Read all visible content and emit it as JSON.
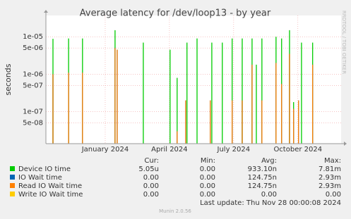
{
  "chart_data": {
    "type": "spike",
    "title": "Average latency for /dev/loop13 - by year",
    "y_label": "seconds",
    "side_text": "RRDTOOL / TOBI OETIKER",
    "log_y": true,
    "grid": true,
    "ylim": [
      1.4e-08,
      3.7e-05
    ],
    "yticks": [
      {
        "value": 1e-05,
        "label": "1e-05"
      },
      {
        "value": 5e-06,
        "label": "5e-06"
      },
      {
        "value": 1e-06,
        "label": "1e-06"
      },
      {
        "value": 5e-07,
        "label": "5e-07"
      },
      {
        "value": 1e-07,
        "label": "1e-07"
      },
      {
        "value": 5e-08,
        "label": "5e-08"
      }
    ],
    "xlim": [
      -2.77,
      11.02
    ],
    "xticks": [
      {
        "value": 0,
        "label": "January 2024"
      },
      {
        "value": 3,
        "label": "April 2024"
      },
      {
        "value": 6,
        "label": "July 2024"
      },
      {
        "value": 9,
        "label": "October 2024"
      }
    ],
    "legend_headers": [
      "Cur:",
      "Min:",
      "Avg:",
      "Max:"
    ],
    "series": [
      {
        "name": "Device IO time",
        "color": "#00cc00",
        "x": [
          -2.44,
          -1.71,
          -1.06,
          0.46,
          1.78,
          3.03,
          3.36,
          3.82,
          4.29,
          4.98,
          5.47,
          5.93,
          6.4,
          6.86,
          7.06,
          7.32,
          7.98,
          8.24,
          8.61,
          8.8,
          9.17,
          9.69
        ],
        "values": [
          8.8e-06,
          9e-06,
          9e-06,
          1.5e-05,
          7e-06,
          4.5e-06,
          8e-07,
          7e-06,
          9e-06,
          7e-06,
          7e-06,
          9e-06,
          9e-06,
          9e-06,
          1.8e-06,
          9e-06,
          1e-05,
          9e-06,
          1.5e-05,
          1.8e-07,
          7e-06,
          7e-06
        ],
        "stats": [
          "5.05u",
          "0.00",
          "933.10n",
          "7.81m"
        ]
      },
      {
        "name": "IO Wait time",
        "color": "#0066b3",
        "x": [
          -2.44,
          -1.71,
          -1.06,
          0.46,
          0.56,
          3.36,
          3.76,
          4.91,
          5.93,
          6.4,
          6.86,
          7.32,
          7.98,
          8.24,
          8.61,
          8.8,
          9.03,
          9.69
        ],
        "values": [
          1e-06,
          1.1e-06,
          1.1e-06,
          5e-06,
          4.5e-06,
          3e-08,
          2e-07,
          2e-07,
          2e-07,
          2e-07,
          1.8e-06,
          2e-07,
          2e-06,
          5.5e-07,
          3.5e-06,
          1.2e-07,
          2e-07,
          1.8e-06
        ],
        "stats": [
          "0.00",
          "0.00",
          "124.75n",
          "2.93m"
        ]
      },
      {
        "name": "Read IO Wait time",
        "color": "#ff8000",
        "x": [
          -2.44,
          -1.71,
          -1.06,
          0.46,
          0.56,
          3.36,
          3.76,
          4.91,
          5.93,
          6.4,
          6.86,
          7.32,
          7.98,
          8.24,
          8.61,
          8.8,
          9.03,
          9.69
        ],
        "values": [
          1e-06,
          1.1e-06,
          1.1e-06,
          5e-06,
          4.5e-06,
          3e-08,
          2e-07,
          2e-07,
          2e-07,
          2e-07,
          1.8e-06,
          2e-07,
          2e-06,
          5.5e-07,
          3.5e-06,
          1.2e-07,
          2e-07,
          1.8e-06
        ],
        "stats": [
          "0.00",
          "0.00",
          "124.75n",
          "2.93m"
        ]
      },
      {
        "name": "Write IO Wait time",
        "color": "#ffcc00",
        "x": [],
        "values": [],
        "stats": [
          "0.00",
          "0.00",
          "0.00",
          "0.00"
        ]
      }
    ],
    "last_update": "Last update: Thu Nov 28 00:00:08 2024",
    "footer": "Munin 2.0.56"
  }
}
